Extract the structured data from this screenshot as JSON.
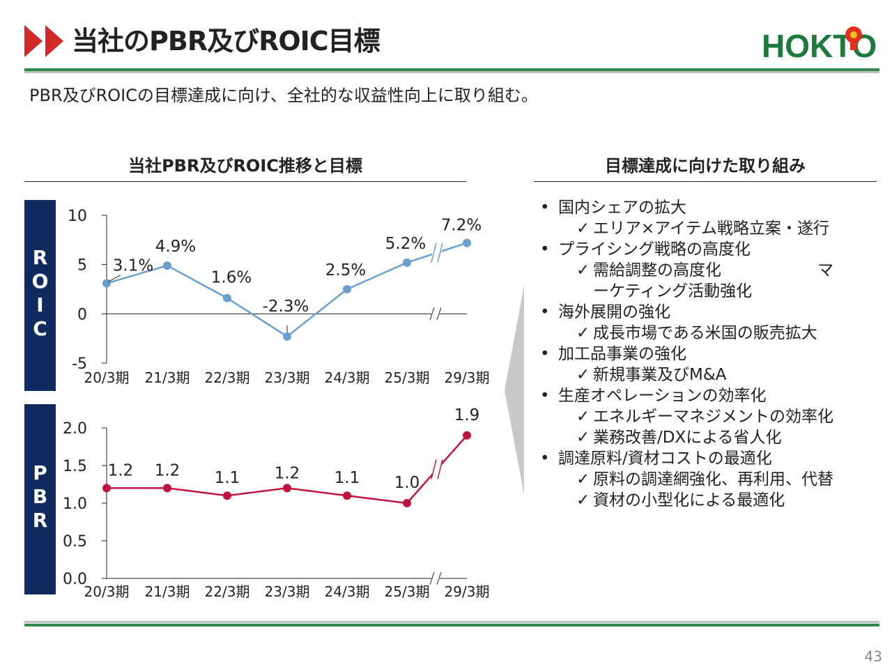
{
  "header": {
    "title": "当社のPBR及びROIC目標",
    "logo_text": "HOKTO"
  },
  "subtitle": "PBR及びROICの目標達成に向け、全社的な収益性向上に取り組む。",
  "left_section": {
    "heading": "当社PBR及びROIC推移と目標"
  },
  "right_section": {
    "heading": "目標達成に向けた取り組み",
    "items": [
      {
        "level": 1,
        "marker": "•",
        "text": "国内シェアの拡大"
      },
      {
        "level": 2,
        "marker": "✓",
        "text": "エリア×アイテム戦略立案・遂行"
      },
      {
        "level": 1,
        "marker": "•",
        "text": "プライシング戦略の高度化"
      },
      {
        "level": 2,
        "marker": "✓",
        "text": "需給調整の高度化　　　　　　マ"
      },
      {
        "level": 3,
        "marker": "",
        "text": "ーケティング活動強化"
      },
      {
        "level": 1,
        "marker": "•",
        "text": "海外展開の強化"
      },
      {
        "level": 2,
        "marker": "✓",
        "text": "成長市場である米国の販売拡大"
      },
      {
        "level": 1,
        "marker": "•",
        "text": "加工品事業の強化"
      },
      {
        "level": 2,
        "marker": "✓",
        "text": "新規事業及びM&A"
      },
      {
        "level": 1,
        "marker": "•",
        "text": "生産オペレーションの効率化"
      },
      {
        "level": 2,
        "marker": "✓",
        "text": "エネルギーマネジメントの効率化"
      },
      {
        "level": 2,
        "marker": "✓",
        "text": "業務改善/DXによる省人化"
      },
      {
        "level": 1,
        "marker": "•",
        "text": "調達原料/資材コストの最適化"
      },
      {
        "level": 2,
        "marker": "✓",
        "text": "原料の調達網強化、再利用、代替"
      },
      {
        "level": 2,
        "marker": "✓",
        "text": "資材の小型化による最適化"
      }
    ]
  },
  "page_number": "43",
  "colors": {
    "roic_line": "#6a9fd0",
    "pbr_line": "#c0143c",
    "sidebar": "#0f2a5f",
    "accent_red": "#d22a2a",
    "rule_green": "#2e8a4e",
    "logo_green": "#1e7a3c",
    "logo_red": "#e0301e",
    "logo_yellow": "#f0c020"
  },
  "chart_data": [
    {
      "type": "line",
      "name_label": "ROIC",
      "categories": [
        "20/3期",
        "21/3期",
        "22/3期",
        "23/3期",
        "24/3期",
        "25/3期",
        "29/3期"
      ],
      "values": [
        3.1,
        4.9,
        1.6,
        -2.3,
        2.5,
        5.2,
        7.2
      ],
      "data_labels": [
        "3.1%",
        "4.9%",
        "1.6%",
        "-2.3%",
        "2.5%",
        "5.2%",
        "7.2%"
      ],
      "yticks": [
        "10",
        "5",
        "0",
        "-5"
      ],
      "ylim": [
        -5,
        10
      ],
      "axis_break_after": "25/3期"
    },
    {
      "type": "line",
      "name_label": "PBR",
      "categories": [
        "20/3期",
        "21/3期",
        "22/3期",
        "23/3期",
        "24/3期",
        "25/3期",
        "29/3期"
      ],
      "values": [
        1.2,
        1.2,
        1.1,
        1.2,
        1.1,
        1.0,
        1.9
      ],
      "data_labels": [
        "1.2",
        "1.2",
        "1.1",
        "1.2",
        "1.1",
        "1.0",
        "1.9"
      ],
      "yticks": [
        "2.0",
        "1.5",
        "1.0",
        "0.5",
        "0.0"
      ],
      "ylim": [
        0,
        2.0
      ],
      "axis_break_after": "25/3期"
    }
  ]
}
